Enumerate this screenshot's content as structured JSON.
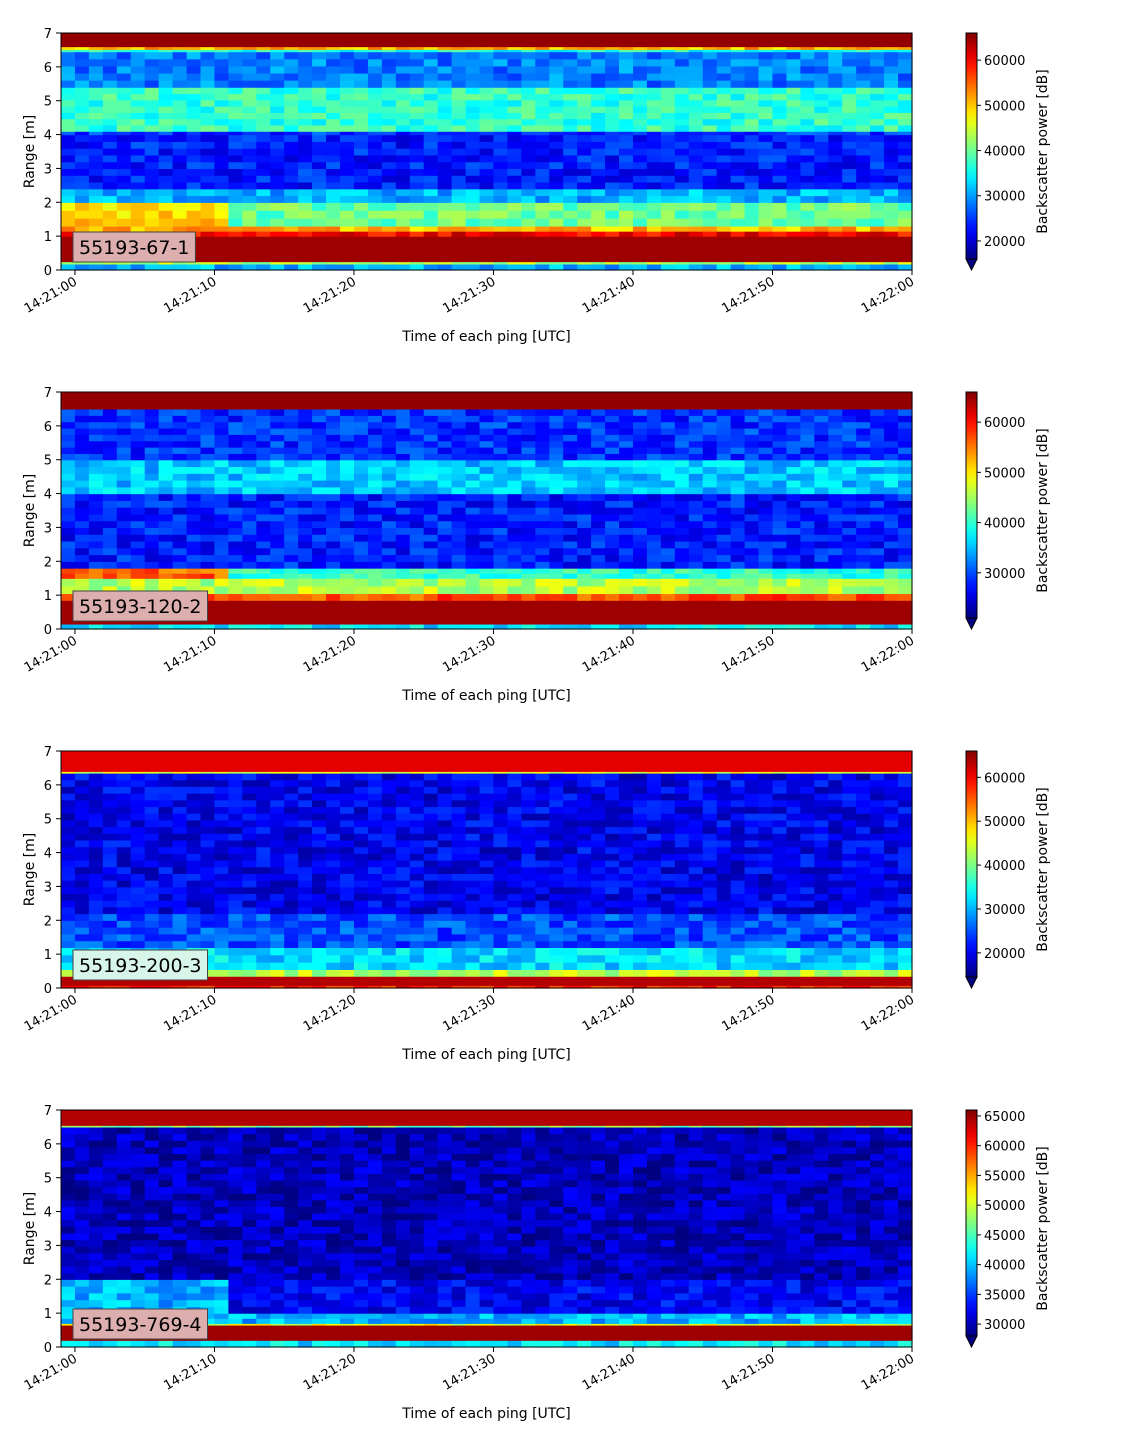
{
  "chart_data": [
    {
      "type": "heatmap",
      "label": "55193-67-1",
      "xlabel": "Time of each ping [UTC]",
      "ylabel": "Range [m]",
      "x_ticks": [
        "14:21:00",
        "14:21:10",
        "14:21:20",
        "14:21:30",
        "14:21:40",
        "14:21:50",
        "14:22:00"
      ],
      "xlim": [
        "14:20:59",
        "14:22:00"
      ],
      "y_ticks": [
        "0",
        "1",
        "2",
        "3",
        "4",
        "5",
        "6",
        "7"
      ],
      "ylim": [
        0,
        7
      ],
      "colorbar": {
        "label": "Backscatter power [dB]",
        "ticks": [
          "20000",
          "30000",
          "40000",
          "50000",
          "60000"
        ],
        "vmin": 16000,
        "vmax": 66000,
        "extend": "min",
        "colormap": "jet"
      },
      "badge_color": "#dcaeae",
      "bands": [
        {
          "y0": 0.0,
          "y1": 0.18,
          "value": 0.3
        },
        {
          "y0": 0.18,
          "y1": 0.25,
          "value": 0.55
        },
        {
          "y0": 0.25,
          "y1": 1.0,
          "value": 0.97
        },
        {
          "y0": 1.0,
          "y1": 1.15,
          "value": 0.88
        },
        {
          "y0": 1.15,
          "y1": 1.3,
          "value": 0.7
        },
        {
          "y0": 1.3,
          "y1": 2.0,
          "value": 0.48,
          "early": 0.66
        },
        {
          "y0": 2.0,
          "y1": 2.4,
          "value": 0.3
        },
        {
          "y0": 2.4,
          "y1": 4.0,
          "value": 0.15
        },
        {
          "y0": 4.0,
          "y1": 4.1,
          "value": 0.18
        },
        {
          "y0": 4.1,
          "y1": 5.4,
          "value": 0.42
        },
        {
          "y0": 5.4,
          "y1": 6.45,
          "value": 0.25
        },
        {
          "y0": 6.45,
          "y1": 6.52,
          "value": 0.4
        },
        {
          "y0": 6.52,
          "y1": 6.6,
          "value": 0.7
        },
        {
          "y0": 6.6,
          "y1": 7.0,
          "value": 0.98
        }
      ]
    },
    {
      "type": "heatmap",
      "label": "55193-120-2",
      "xlabel": "Time of each ping [UTC]",
      "ylabel": "Range [m]",
      "x_ticks": [
        "14:21:00",
        "14:21:10",
        "14:21:20",
        "14:21:30",
        "14:21:40",
        "14:21:50",
        "14:22:00"
      ],
      "xlim": [
        "14:20:59",
        "14:22:00"
      ],
      "y_ticks": [
        "0",
        "1",
        "2",
        "3",
        "4",
        "5",
        "6",
        "7"
      ],
      "ylim": [
        0,
        7
      ],
      "colorbar": {
        "label": "Backscatter power [dB]",
        "ticks": [
          "30000",
          "40000",
          "50000",
          "60000"
        ],
        "vmin": 21000,
        "vmax": 66000,
        "extend": "min",
        "colormap": "jet"
      },
      "badge_color": "#dcaeae",
      "bands": [
        {
          "y0": 0.0,
          "y1": 0.15,
          "value": 0.35
        },
        {
          "y0": 0.15,
          "y1": 0.85,
          "value": 0.97
        },
        {
          "y0": 0.85,
          "y1": 1.05,
          "value": 0.8
        },
        {
          "y0": 1.05,
          "y1": 1.5,
          "value": 0.55
        },
        {
          "y0": 1.5,
          "y1": 1.8,
          "value": 0.42,
          "early": 0.78
        },
        {
          "y0": 1.8,
          "y1": 4.0,
          "value": 0.15
        },
        {
          "y0": 4.0,
          "y1": 5.0,
          "value": 0.32
        },
        {
          "y0": 5.0,
          "y1": 6.5,
          "value": 0.17
        },
        {
          "y0": 6.5,
          "y1": 7.0,
          "value": 0.98
        }
      ]
    },
    {
      "type": "heatmap",
      "label": "55193-200-3",
      "xlabel": "Time of each ping [UTC]",
      "ylabel": "Range [m]",
      "x_ticks": [
        "14:21:00",
        "14:21:10",
        "14:21:20",
        "14:21:30",
        "14:21:40",
        "14:21:50",
        "14:22:00"
      ],
      "xlim": [
        "14:20:59",
        "14:22:00"
      ],
      "y_ticks": [
        "0",
        "1",
        "2",
        "3",
        "4",
        "5",
        "6",
        "7"
      ],
      "ylim": [
        0,
        7
      ],
      "colorbar": {
        "label": "Backscatter power [dB]",
        "ticks": [
          "20000",
          "30000",
          "40000",
          "50000",
          "60000"
        ],
        "vmin": 14500,
        "vmax": 66000,
        "extend": "min",
        "colormap": "jet"
      },
      "badge_color": "#d8f5ea",
      "bands": [
        {
          "y0": 0.0,
          "y1": 0.08,
          "value": 0.85
        },
        {
          "y0": 0.08,
          "y1": 0.35,
          "value": 0.95
        },
        {
          "y0": 0.35,
          "y1": 0.55,
          "value": 0.55
        },
        {
          "y0": 0.55,
          "y1": 1.2,
          "value": 0.34
        },
        {
          "y0": 1.2,
          "y1": 2.2,
          "value": 0.2
        },
        {
          "y0": 2.2,
          "y1": 6.35,
          "value": 0.11
        },
        {
          "y0": 6.35,
          "y1": 6.4,
          "value": 0.6
        },
        {
          "y0": 6.4,
          "y1": 7.0,
          "value": 0.9
        }
      ]
    },
    {
      "type": "heatmap",
      "label": "55193-769-4",
      "xlabel": "Time of each ping [UTC]",
      "ylabel": "Range [m]",
      "x_ticks": [
        "14:21:00",
        "14:21:10",
        "14:21:20",
        "14:21:30",
        "14:21:40",
        "14:21:50",
        "14:22:00"
      ],
      "xlim": [
        "14:20:59",
        "14:22:00"
      ],
      "y_ticks": [
        "0",
        "1",
        "2",
        "3",
        "4",
        "5",
        "6",
        "7"
      ],
      "ylim": [
        0,
        7
      ],
      "colorbar": {
        "label": "Backscatter power [dB]",
        "ticks": [
          "30000",
          "35000",
          "40000",
          "45000",
          "50000",
          "55000",
          "60000",
          "65000"
        ],
        "vmin": 28000,
        "vmax": 66000,
        "extend": "min",
        "colormap": "jet"
      },
      "badge_color": "#dcaeae",
      "bands": [
        {
          "y0": 0.0,
          "y1": 0.2,
          "value": 0.35
        },
        {
          "y0": 0.2,
          "y1": 0.65,
          "value": 0.97
        },
        {
          "y0": 0.65,
          "y1": 0.7,
          "value": 0.6
        },
        {
          "y0": 0.7,
          "y1": 1.0,
          "value": 0.3
        },
        {
          "y0": 1.0,
          "y1": 2.0,
          "value": 0.12,
          "early": 0.3
        },
        {
          "y0": 2.0,
          "y1": 6.5,
          "value": 0.06
        },
        {
          "y0": 6.5,
          "y1": 6.55,
          "value": 0.5
        },
        {
          "y0": 6.55,
          "y1": 7.0,
          "value": 0.95
        }
      ]
    }
  ]
}
